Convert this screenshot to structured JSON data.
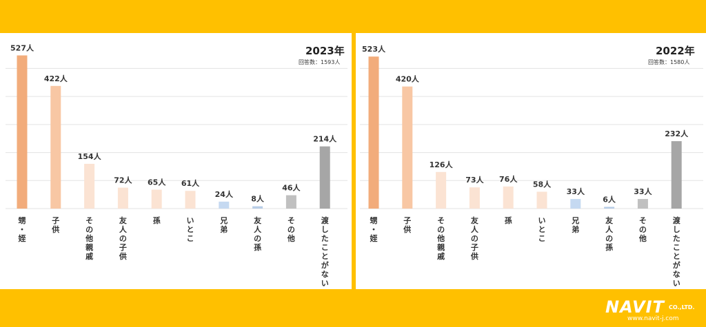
{
  "colors": {
    "background": "#ffc000",
    "series": [
      "#f2ac7b",
      "#f8c7a4",
      "#fbe3d3",
      "#fbe3d3",
      "#fbe3d3",
      "#fbe3d3",
      "#c5d9f1",
      "#b8cde6",
      "#c0c0c0",
      "#a6a6a6"
    ]
  },
  "chart_data": [
    {
      "type": "bar",
      "title": "2023年",
      "subtitle": "回答数：1593人",
      "categories": [
        "甥・姪",
        "子供",
        "その他親戚",
        "友人の子供",
        "孫",
        "いとこ",
        "兄弟",
        "友人の孫",
        "その他",
        "渡したことがない"
      ],
      "values": [
        527,
        422,
        154,
        72,
        65,
        61,
        24,
        8,
        46,
        214
      ],
      "value_labels": [
        "527人",
        "422人",
        "154人",
        "72人",
        "65人",
        "61人",
        "24人",
        "8人",
        "46人",
        "214人"
      ],
      "ylim": [
        0,
        540
      ],
      "grid": true
    },
    {
      "type": "bar",
      "title": "2022年",
      "subtitle": "回答数：1580人",
      "categories": [
        "甥・姪",
        "子供",
        "その他親戚",
        "友人の子供",
        "孫",
        "いとこ",
        "兄弟",
        "友人の孫",
        "その他",
        "渡したことがない"
      ],
      "values": [
        523,
        420,
        126,
        73,
        76,
        58,
        33,
        6,
        33,
        232
      ],
      "value_labels": [
        "523人",
        "420人",
        "126人",
        "73人",
        "76人",
        "58人",
        "33人",
        "6人",
        "33人",
        "232人"
      ],
      "ylim": [
        0,
        540
      ],
      "grid": true
    }
  ],
  "logo": {
    "main": "NAVIT",
    "company": "CO.,LTD.",
    "url": "www.navit-j.com"
  }
}
